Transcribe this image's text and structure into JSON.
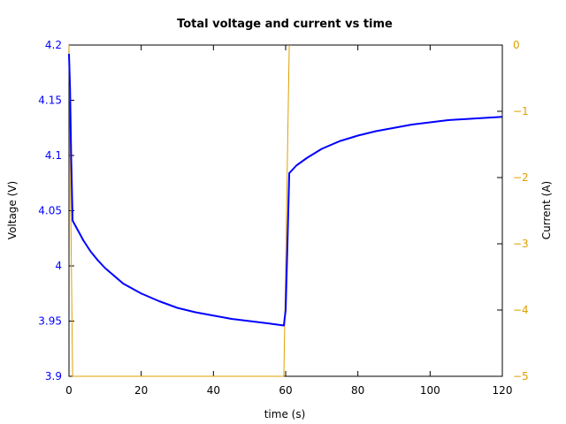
{
  "chart_data": {
    "type": "line",
    "title": "Total voltage and current vs time",
    "xlabel": "time (s)",
    "ylabel_left": "Voltage (V)",
    "ylabel_right": "Current (A)",
    "xlim": [
      0,
      120
    ],
    "ylim_left": [
      3.9,
      4.2
    ],
    "ylim_right": [
      -5,
      0
    ],
    "x_ticks": [
      "0",
      "20",
      "40",
      "60",
      "80",
      "100",
      "120"
    ],
    "y_left_ticks": [
      "3.9",
      "3.95",
      "4",
      "4.05",
      "4.1",
      "4.15",
      "4.2"
    ],
    "y_right_ticks": [
      "-5",
      "-4",
      "-3",
      "-2",
      "-1",
      "0"
    ],
    "grid": false,
    "series": [
      {
        "axis": "left",
        "color": "#0000ff",
        "x": [
          0,
          0.3,
          0.6,
          1,
          2,
          4,
          6,
          8,
          10,
          15,
          20,
          25,
          30,
          35,
          40,
          45,
          50,
          55,
          59.5,
          60,
          60.5,
          61,
          63,
          66,
          70,
          75,
          80,
          85,
          90,
          95,
          100,
          105,
          110,
          115,
          120
        ],
        "y": [
          4.192,
          4.16,
          4.1,
          4.041,
          4.035,
          4.023,
          4.013,
          4.005,
          3.998,
          3.984,
          3.975,
          3.968,
          3.962,
          3.958,
          3.955,
          3.952,
          3.95,
          3.948,
          3.946,
          3.96,
          4.02,
          4.084,
          4.091,
          4.098,
          4.106,
          4.113,
          4.118,
          4.122,
          4.125,
          4.128,
          4.13,
          4.132,
          4.133,
          4.134,
          4.135
        ]
      },
      {
        "axis": "right",
        "color": "#e0a000",
        "x": [
          0,
          1,
          59.5,
          61
        ],
        "y": [
          0,
          -5,
          -5,
          0
        ]
      }
    ]
  }
}
